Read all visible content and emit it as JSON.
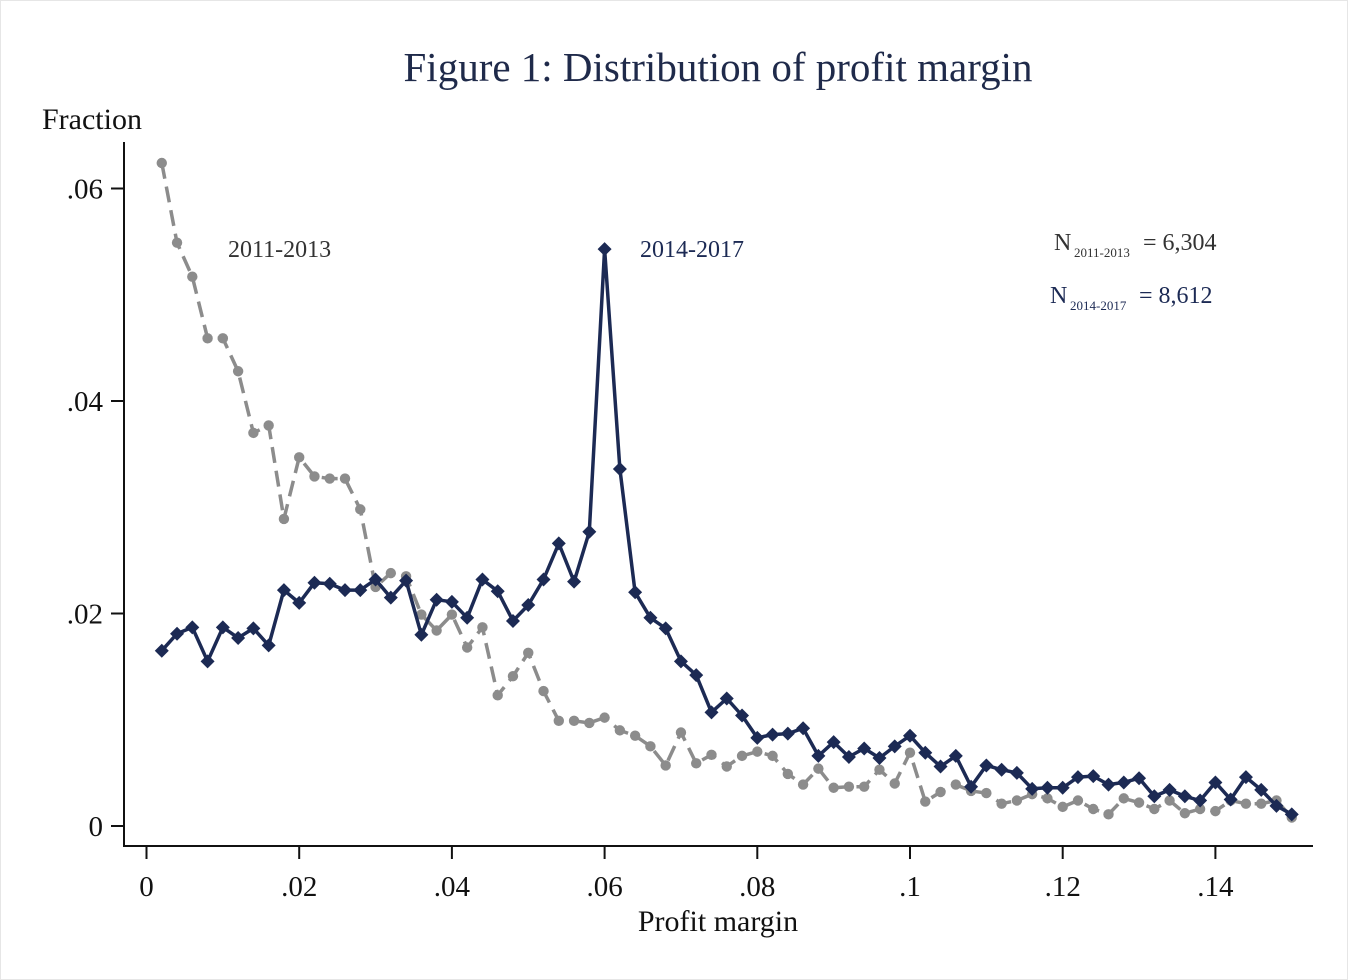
{
  "chart_data": {
    "type": "line",
    "title": "Figure 1: Distribution of profit margin",
    "xlabel": "Profit margin",
    "ylabel": "Fraction",
    "xlim": [
      -0.003,
      0.153
    ],
    "ylim": [
      -0.0019,
      0.0645
    ],
    "xticks": [
      0,
      0.02,
      0.04,
      0.06,
      0.08,
      0.1,
      0.12,
      0.14
    ],
    "xtick_labels": [
      "0",
      ".02",
      ".04",
      ".06",
      ".08",
      ".1",
      ".12",
      ".14"
    ],
    "yticks": [
      0,
      0.02,
      0.04,
      0.06
    ],
    "ytick_labels": [
      "0",
      ".02",
      ".04",
      ".06"
    ],
    "grid": false,
    "x_start": 0.002,
    "x_step": 0.002,
    "series": [
      {
        "name": "2011-2013",
        "color": "#8c8c8c",
        "style": "dashed",
        "marker": "circle",
        "values": [
          0.0624,
          0.0549,
          0.0517,
          0.0459,
          0.0459,
          0.0428,
          0.037,
          0.0377,
          0.0289,
          0.0347,
          0.0329,
          0.0327,
          0.0327,
          0.0298,
          0.0225,
          0.0238,
          0.0235,
          0.0199,
          0.0184,
          0.0199,
          0.0168,
          0.0187,
          0.0123,
          0.0141,
          0.0163,
          0.0127,
          0.0099,
          0.0099,
          0.0097,
          0.0102,
          0.009,
          0.0085,
          0.0075,
          0.0057,
          0.0088,
          0.0059,
          0.0067,
          0.0056,
          0.0066,
          0.007,
          0.0066,
          0.0049,
          0.0039,
          0.0054,
          0.0036,
          0.0037,
          0.0037,
          0.0053,
          0.004,
          0.0069,
          0.0023,
          0.0032,
          0.0039,
          0.0033,
          0.0031,
          0.0021,
          0.0024,
          0.003,
          0.0026,
          0.0018,
          0.0024,
          0.0016,
          0.0011,
          0.0026,
          0.0022,
          0.0016,
          0.0024,
          0.0012,
          0.0016,
          0.0014,
          0.0024,
          0.0021,
          0.0021,
          0.0024,
          0.0008
        ]
      },
      {
        "name": "2014-2017",
        "color": "#1c2a54",
        "style": "solid",
        "marker": "diamond",
        "values": [
          0.0165,
          0.0181,
          0.0187,
          0.0155,
          0.0187,
          0.0177,
          0.0186,
          0.017,
          0.0222,
          0.021,
          0.0229,
          0.0228,
          0.0222,
          0.0222,
          0.0232,
          0.0215,
          0.0231,
          0.018,
          0.0213,
          0.0211,
          0.0196,
          0.0232,
          0.0221,
          0.0193,
          0.0208,
          0.0232,
          0.0266,
          0.023,
          0.0277,
          0.0543,
          0.0336,
          0.022,
          0.0196,
          0.0186,
          0.0155,
          0.0142,
          0.0107,
          0.012,
          0.0104,
          0.0083,
          0.0086,
          0.0087,
          0.0092,
          0.0066,
          0.0079,
          0.0065,
          0.0073,
          0.0064,
          0.0075,
          0.0085,
          0.0069,
          0.0056,
          0.0066,
          0.0037,
          0.0057,
          0.0053,
          0.005,
          0.0035,
          0.0036,
          0.0036,
          0.0046,
          0.0047,
          0.0039,
          0.0041,
          0.0045,
          0.0028,
          0.0034,
          0.0028,
          0.0024,
          0.0041,
          0.0025,
          0.0046,
          0.0034,
          0.0019,
          0.0011
        ]
      }
    ],
    "annotations": {
      "label_2011": "2011-2013",
      "label_2014": "2014-2017",
      "n1_base": "N",
      "n1_sub": "2011-2013",
      "n1_value": "= 6,304",
      "n2_base": "N",
      "n2_sub": "2014-2017",
      "n2_value": "= 8,612"
    }
  }
}
